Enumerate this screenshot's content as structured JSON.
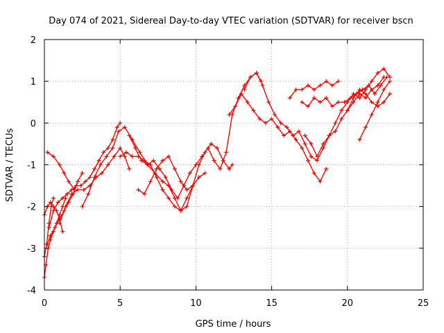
{
  "chart_data": {
    "type": "scatter",
    "title": "Day 074 of 2021, Sidereal Day-to-day VTEC variation (SDTVAR) for receiver bscn",
    "xlabel": "GPS time / hours",
    "ylabel": "SDTVAR / TECUs",
    "xlim": [
      0,
      25
    ],
    "ylim": [
      -4,
      2
    ],
    "xticks": [
      0,
      5,
      10,
      15,
      20,
      25
    ],
    "yticks": [
      -4,
      -3,
      -2,
      -1,
      0,
      1,
      2
    ],
    "xtick_labels": [
      "0",
      "5",
      "10",
      "15",
      "20",
      "25"
    ],
    "ytick_labels": [
      "-4",
      "-3",
      "-2",
      "-1",
      "0",
      "1",
      "2"
    ],
    "grid": true,
    "marker": "plus",
    "color": "#ff0000",
    "series": [
      {
        "x": [
          0.0,
          0.1,
          0.25,
          0.4,
          0.6,
          0.8,
          1.0,
          1.2,
          1.4
        ],
        "y": [
          -3.7,
          -3.4,
          -3.0,
          -2.8,
          -2.6,
          -2.4,
          -2.2,
          -2.0,
          -1.8
        ]
      },
      {
        "x": [
          0.0,
          0.15,
          0.3,
          0.45,
          0.6
        ],
        "y": [
          -3.2,
          -2.9,
          -2.4,
          -2.0,
          -1.8
        ]
      },
      {
        "x": [
          0.0,
          0.2,
          0.4,
          0.6,
          0.8,
          1.0,
          1.2
        ],
        "y": [
          -2.2,
          -2.0,
          -1.9,
          -2.0,
          -2.1,
          -2.3,
          -2.6
        ]
      },
      {
        "x": [
          0.2,
          0.4,
          0.7,
          1.0,
          1.3,
          1.6,
          1.9,
          2.2,
          2.5
        ],
        "y": [
          -2.9,
          -2.7,
          -2.5,
          -2.3,
          -2.1,
          -1.9,
          -1.7,
          -1.4,
          -1.2
        ]
      },
      {
        "x": [
          0.3,
          0.6,
          0.9,
          1.2,
          1.5,
          1.8,
          2.1,
          2.4,
          2.7,
          3.0,
          3.3,
          3.6,
          3.9,
          4.2,
          4.5,
          4.8,
          5.0
        ],
        "y": [
          -2.5,
          -2.1,
          -1.9,
          -1.8,
          -1.7,
          -1.6,
          -1.5,
          -1.5,
          -1.4,
          -1.3,
          -1.1,
          -0.9,
          -0.7,
          -0.6,
          -0.4,
          -0.1,
          0.0
        ]
      },
      {
        "x": [
          0.2,
          0.6,
          1.0,
          1.3,
          1.6,
          2.0
        ],
        "y": [
          -0.7,
          -0.8,
          -1.0,
          -1.2,
          -1.4,
          -1.6
        ]
      },
      {
        "x": [
          1.0,
          1.4,
          1.8,
          2.2,
          2.6,
          3.0,
          3.4,
          3.8,
          4.2,
          4.6,
          5.0,
          5.3,
          5.6
        ],
        "y": [
          -2.4,
          -2.0,
          -1.7,
          -1.6,
          -1.6,
          -1.5,
          -1.3,
          -1.2,
          -1.0,
          -0.8,
          -0.6,
          -0.8,
          -1.1
        ]
      },
      {
        "x": [
          2.5,
          2.9,
          3.3,
          3.7,
          4.1,
          4.5,
          4.9,
          5.3,
          5.8,
          6.3,
          6.8,
          7.3,
          7.8,
          8.2,
          8.6,
          9.0,
          9.4,
          9.8,
          10.2,
          10.6,
          11.0,
          11.4,
          11.8,
          12.2,
          12.4
        ],
        "y": [
          -2.0,
          -1.7,
          -1.3,
          -1.0,
          -0.8,
          -0.6,
          -0.2,
          -0.1,
          -0.4,
          -0.7,
          -1.0,
          -1.2,
          -1.4,
          -1.5,
          -1.8,
          -2.1,
          -2.0,
          -1.5,
          -1.0,
          -0.7,
          -0.5,
          -0.6,
          -0.9,
          -1.1,
          -1.0
        ]
      },
      {
        "x": [
          5.0,
          5.4,
          5.8,
          6.2,
          6.6,
          7.0,
          7.4,
          7.8,
          8.2,
          8.6,
          9.0,
          9.4,
          9.8,
          10.2,
          10.6
        ],
        "y": [
          -0.8,
          -0.7,
          -0.8,
          -0.8,
          -0.9,
          -1.0,
          -1.3,
          -1.6,
          -1.8,
          -2.0,
          -2.1,
          -1.8,
          -1.5,
          -1.3,
          -1.2
        ]
      },
      {
        "x": [
          6.2,
          6.6,
          7.0,
          7.4,
          7.8,
          8.2,
          8.6,
          9.0,
          9.4,
          9.8
        ],
        "y": [
          -1.6,
          -1.7,
          -1.4,
          -1.1,
          -0.9,
          -0.8,
          -1.1,
          -1.4,
          -1.6,
          -1.5
        ]
      },
      {
        "x": [
          5.6,
          6.0,
          6.4,
          6.8,
          7.2,
          7.6,
          8.0,
          8.4,
          8.8,
          9.2,
          9.6,
          10.0,
          10.4,
          10.8,
          11.2,
          11.6,
          12.0,
          12.4,
          12.8,
          13.2,
          13.6,
          14.0,
          14.3
        ],
        "y": [
          -0.3,
          -0.6,
          -0.9,
          -1.0,
          -0.9,
          -1.1,
          -1.3,
          -1.6,
          -1.8,
          -1.5,
          -1.2,
          -1.0,
          -0.8,
          -0.6,
          -0.9,
          -1.1,
          -0.7,
          0.2,
          0.6,
          0.9,
          1.1,
          1.2,
          1.0
        ]
      },
      {
        "x": [
          12.2,
          12.6,
          13.0,
          13.4,
          13.8,
          14.2,
          14.6,
          15.0,
          15.4,
          15.8,
          16.2,
          16.6,
          17.0,
          17.4,
          17.8,
          18.2,
          18.6
        ],
        "y": [
          0.2,
          0.4,
          0.7,
          0.5,
          0.3,
          0.1,
          0.0,
          0.1,
          -0.1,
          -0.3,
          -0.2,
          -0.4,
          -0.6,
          -0.9,
          -1.2,
          -1.4,
          -1.1
        ]
      },
      {
        "x": [
          13.2,
          13.6,
          14.0,
          14.4,
          14.8,
          15.2,
          15.6,
          16.0,
          16.4,
          16.8,
          17.2,
          17.6,
          18.0,
          18.4,
          18.8,
          19.2,
          19.6,
          20.0,
          20.4,
          20.8,
          21.2,
          21.6,
          22.0,
          22.4,
          22.8
        ],
        "y": [
          0.8,
          1.1,
          1.2,
          0.9,
          0.5,
          0.2,
          0.0,
          -0.1,
          -0.3,
          -0.2,
          -0.5,
          -0.8,
          -0.9,
          -0.6,
          -0.3,
          0.0,
          0.3,
          0.5,
          0.7,
          0.6,
          0.8,
          1.0,
          1.2,
          1.3,
          1.1
        ]
      },
      {
        "x": [
          16.2,
          16.6,
          17.0,
          17.4,
          17.8,
          18.2,
          18.6,
          19.0,
          19.4
        ],
        "y": [
          0.6,
          0.8,
          0.8,
          0.9,
          0.8,
          0.9,
          1.0,
          0.9,
          1.0
        ]
      },
      {
        "x": [
          17.0,
          17.4,
          17.8,
          18.2,
          18.6,
          19.0,
          19.4,
          19.8,
          20.2,
          20.6,
          21.0,
          21.4,
          21.8,
          22.2,
          22.6
        ],
        "y": [
          0.5,
          0.4,
          0.6,
          0.5,
          0.6,
          0.4,
          0.5,
          0.5,
          0.6,
          0.7,
          0.8,
          0.9,
          0.7,
          0.9,
          1.1
        ]
      },
      {
        "x": [
          17.2,
          17.6,
          18.0,
          18.4,
          18.8,
          19.2,
          19.6,
          20.0,
          20.4,
          20.8,
          21.2,
          21.6,
          22.0,
          22.4
        ],
        "y": [
          -0.3,
          -0.5,
          -0.8,
          -0.5,
          -0.3,
          -0.2,
          0.1,
          0.3,
          0.5,
          0.7,
          0.6,
          0.8,
          0.9,
          1.1
        ]
      },
      {
        "x": [
          20.8,
          21.2,
          21.6,
          22.0,
          22.4,
          22.8
        ],
        "y": [
          -0.4,
          -0.1,
          0.2,
          0.5,
          0.8,
          1.0
        ]
      },
      {
        "x": [
          20.0,
          20.4,
          20.8,
          21.2,
          21.6,
          22.0,
          22.4,
          22.8
        ],
        "y": [
          0.3,
          0.6,
          0.8,
          0.7,
          0.5,
          0.4,
          0.5,
          0.7
        ]
      }
    ]
  }
}
